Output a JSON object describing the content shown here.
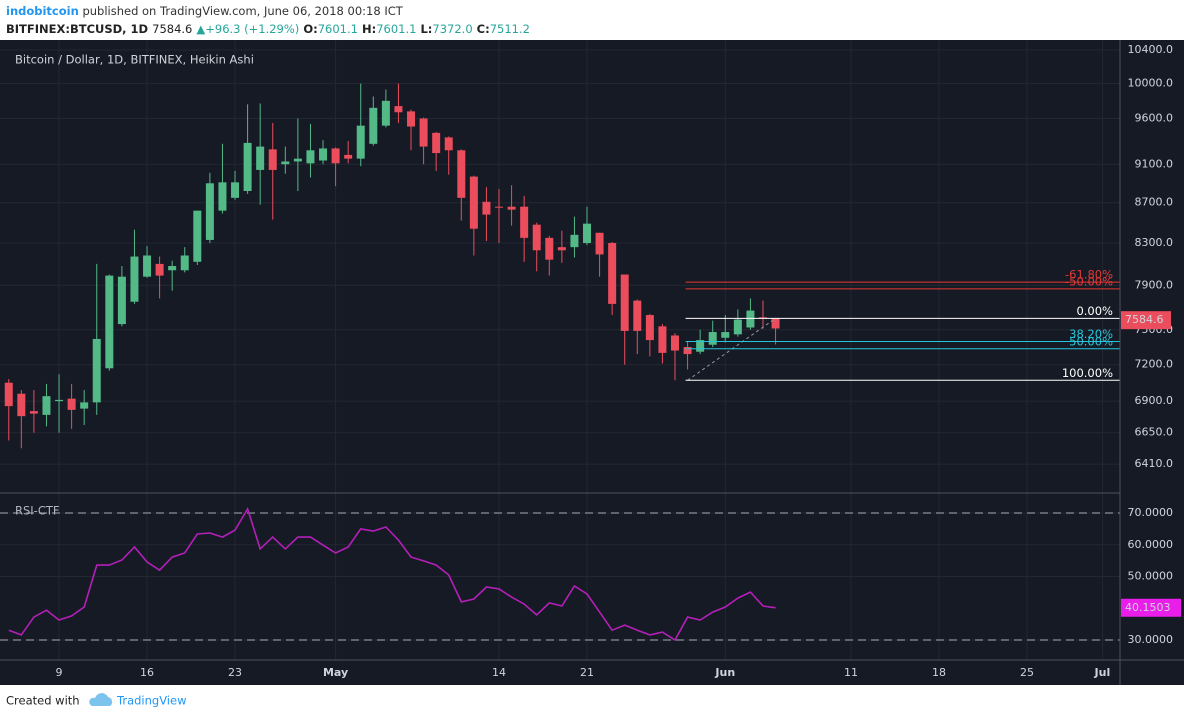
{
  "header": {
    "author": "indobitcoin",
    "published": "published on TradingView.com, June 06, 2018 00:18 ICT",
    "symbol": "BITFINEX:BTCUSD, 1D",
    "arrow": "▲",
    "change": "+96.3 (+1.29%)",
    "ohlc": [
      [
        "O:",
        "7601.1"
      ],
      [
        "H:",
        "7601.1"
      ],
      [
        "L:",
        "7372.0"
      ],
      [
        "C:",
        "7511.2"
      ]
    ]
  },
  "chart_data": {
    "type": "candlestick",
    "title": "Bitcoin / Dollar, 1D, BITFINEX, Heikin Ashi",
    "open": [
      7050,
      6960,
      6820,
      6790,
      6900,
      6920,
      6840,
      6890,
      7170,
      7550,
      7750,
      7980,
      8100,
      8040,
      8040,
      8120,
      8330,
      8620,
      8750,
      8820,
      9040,
      9260,
      9100,
      9130,
      9110,
      9140,
      9270,
      9200,
      9160,
      9320,
      9520,
      9740,
      9680,
      9600,
      9440,
      9390,
      9250,
      8970,
      8710,
      8660,
      8660,
      8660,
      8480,
      8350,
      8260,
      8260,
      8300,
      8400,
      8300,
      8000,
      7760,
      7630,
      7530,
      7450,
      7350,
      7310,
      7370,
      7430,
      7460,
      7520,
      7610,
      7601.1
    ],
    "high": [
      7080,
      6990,
      6990,
      7040,
      7120,
      7040,
      6990,
      8100,
      8000,
      8080,
      8430,
      8270,
      8170,
      8130,
      8260,
      8620,
      9010,
      9320,
      9030,
      9760,
      9770,
      9550,
      9290,
      9600,
      9540,
      9360,
      9280,
      9350,
      10000,
      9850,
      9930,
      10000,
      9700,
      9610,
      9450,
      9400,
      9260,
      8980,
      8860,
      8840,
      8880,
      8770,
      8500,
      8370,
      8420,
      8560,
      8660,
      8400,
      8310,
      8000,
      7770,
      7640,
      7550,
      7470,
      7400,
      7500,
      7580,
      7630,
      7680,
      7780,
      7760,
      7601.1
    ],
    "low": [
      6590,
      6530,
      6650,
      6700,
      6650,
      6680,
      6710,
      6790,
      7150,
      7530,
      7730,
      7970,
      7780,
      7850,
      8020,
      8090,
      8300,
      8590,
      8730,
      8790,
      8680,
      8530,
      9000,
      8820,
      8960,
      9100,
      8870,
      9110,
      9080,
      9300,
      9500,
      9550,
      9250,
      9100,
      9030,
      8990,
      8520,
      8180,
      8320,
      8300,
      8470,
      8120,
      8030,
      7990,
      8110,
      8160,
      8280,
      7980,
      7630,
      7200,
      7290,
      7270,
      7210,
      7070,
      7160,
      7290,
      7350,
      7390,
      7440,
      7500,
      7510,
      7372
    ],
    "close": [
      6860,
      6780,
      6800,
      6940,
      6910,
      6830,
      6890,
      7420,
      7990,
      7980,
      8170,
      8180,
      7990,
      8080,
      8180,
      8620,
      8900,
      8910,
      8910,
      9330,
      9290,
      9040,
      9130,
      9160,
      9250,
      9270,
      9110,
      9160,
      9520,
      9720,
      9800,
      9670,
      9510,
      9290,
      9220,
      9250,
      8750,
      8440,
      8580,
      8650,
      8630,
      8350,
      8230,
      8140,
      8230,
      8380,
      8490,
      8190,
      7730,
      7490,
      7490,
      7410,
      7300,
      7320,
      7290,
      7410,
      7480,
      7480,
      7590,
      7670,
      7600,
      7511.2
    ],
    "up_color": "#53b987",
    "down_color": "#eb4d5c",
    "log_scale": true,
    "grid": true,
    "ylim": [
      6205,
      10522
    ],
    "yticks": [
      {
        "value": 10400,
        "label": "10400.0"
      },
      {
        "value": 10000,
        "label": "10000.0"
      },
      {
        "value": 9600,
        "label": "9600.0"
      },
      {
        "value": 9100,
        "label": "9100.0"
      },
      {
        "value": 8700,
        "label": "8700.0"
      },
      {
        "value": 8300,
        "label": "8300.0"
      },
      {
        "value": 7900,
        "label": "7900.0"
      },
      {
        "value": 7500,
        "label": "7500.0"
      },
      {
        "value": 7200,
        "label": "7200.0"
      },
      {
        "value": 6900,
        "label": "6900.0"
      },
      {
        "value": 6650,
        "label": "6650.0"
      },
      {
        "value": 6410,
        "label": "6410.0"
      }
    ],
    "xlim": [
      -0.14,
      88.4
    ],
    "xticks": [
      {
        "value": 4,
        "label": "9"
      },
      {
        "value": 11,
        "label": "16"
      },
      {
        "value": 18,
        "label": "23"
      },
      {
        "value": 26,
        "label": "May"
      },
      {
        "value": 39,
        "label": "14"
      },
      {
        "value": 46,
        "label": "21"
      },
      {
        "value": 57,
        "label": "Jun"
      },
      {
        "value": 67,
        "label": "11"
      },
      {
        "value": 74,
        "label": "18"
      },
      {
        "value": 81,
        "label": "25"
      },
      {
        "value": 87,
        "label": "Jul"
      }
    ],
    "last_price": 7584.6,
    "last_color": "#eb4d5c",
    "fib": {
      "high": 7601,
      "low": 7070,
      "anchors": [
        54,
        61
      ],
      "levels": [
        {
          "value": -61.8,
          "label": "-61.80%",
          "color": "#e53935"
        },
        {
          "value": -50,
          "label": "-50.00%",
          "color": "#e53935"
        },
        {
          "value": 0,
          "label": "0.00%",
          "color": "#ffffff"
        },
        {
          "value": 38.2,
          "label": "38.20%",
          "color": "#26c6da"
        },
        {
          "value": 50,
          "label": "50.00%",
          "color": "#26c6da"
        },
        {
          "value": 100,
          "label": "100.00%",
          "color": "#ffffff"
        }
      ]
    },
    "rsi": {
      "name": "RSI-CTF",
      "color": "#b41fb8",
      "last_color": "#e91ee9",
      "values": [
        33.1,
        31.6,
        37.2,
        39.4,
        36.3,
        37.6,
        40.4,
        53.6,
        53.6,
        55.2,
        59.3,
        54.6,
        52.0,
        56.1,
        57.4,
        63.4,
        63.7,
        62.4,
        64.6,
        71.3,
        58.7,
        62.4,
        58.7,
        62.4,
        62.4,
        59.9,
        57.4,
        59.3,
        65.0,
        64.3,
        65.6,
        61.5,
        56.1,
        54.9,
        53.6,
        50.5,
        42.0,
        42.9,
        46.7,
        46.1,
        43.5,
        41.3,
        37.9,
        41.7,
        40.7,
        47.0,
        44.5,
        38.8,
        33.1,
        34.7,
        33.1,
        31.6,
        32.5,
        30.0,
        37.2,
        36.3,
        38.8,
        40.4,
        43.2,
        45.1,
        40.7,
        40.1503
      ],
      "ylim": [
        23.7,
        76.3
      ],
      "yticks": [
        {
          "value": 70,
          "label": "70.0000"
        },
        {
          "value": 60,
          "label": "60.0000"
        },
        {
          "value": 50,
          "label": "50.0000"
        },
        {
          "value": 30,
          "label": "30.0000"
        }
      ],
      "bands": [
        70,
        30
      ]
    }
  },
  "footer": {
    "text": "Created with",
    "brand": "TradingView"
  }
}
